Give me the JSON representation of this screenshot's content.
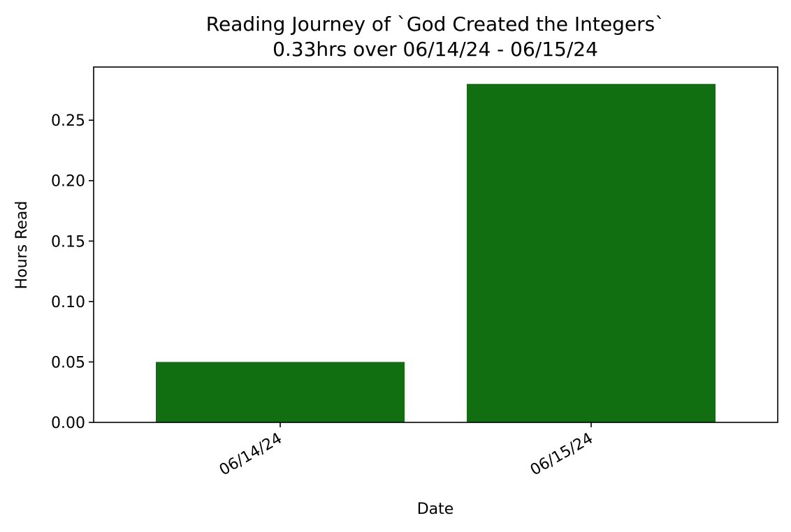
{
  "chart_data": {
    "type": "bar",
    "title": "Reading Journey of `God Created the Integers`",
    "subtitle": "0.33hrs over 06/14/24 - 06/15/24",
    "xlabel": "Date",
    "ylabel": "Hours Read",
    "categories": [
      "06/14/24",
      "06/15/24"
    ],
    "values": [
      0.05,
      0.28
    ],
    "ylim": [
      0,
      0.294
    ],
    "yticks": [
      "0.00",
      "0.05",
      "0.10",
      "0.15",
      "0.20",
      "0.25"
    ],
    "bar_color": "#116F11",
    "grid": false,
    "legend": "none"
  }
}
